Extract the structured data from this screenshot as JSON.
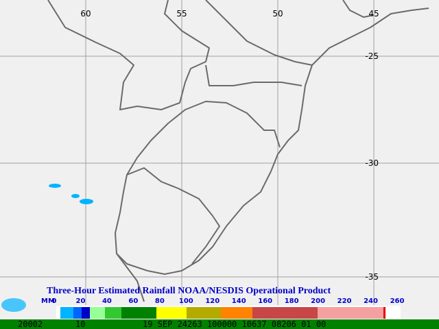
{
  "map": {
    "longitude_labels": [
      "60",
      "55",
      "50",
      "45"
    ],
    "latitude_labels": [
      "-25",
      "-30",
      "-35"
    ],
    "legend": {
      "title": "Three-Hour Estimated Rainfall   NOAA/NESDIS Operational Product",
      "unit": "MM",
      "scale_labels": [
        "0",
        "20",
        "40",
        "60",
        "80",
        "100",
        "120",
        "140",
        "160",
        "180",
        "200",
        "220",
        "240",
        "260"
      ]
    },
    "footer": {
      "left": "20002",
      "count": "10",
      "info": "19 SEP 24263 100000 10637 08206 01 00"
    }
  }
}
